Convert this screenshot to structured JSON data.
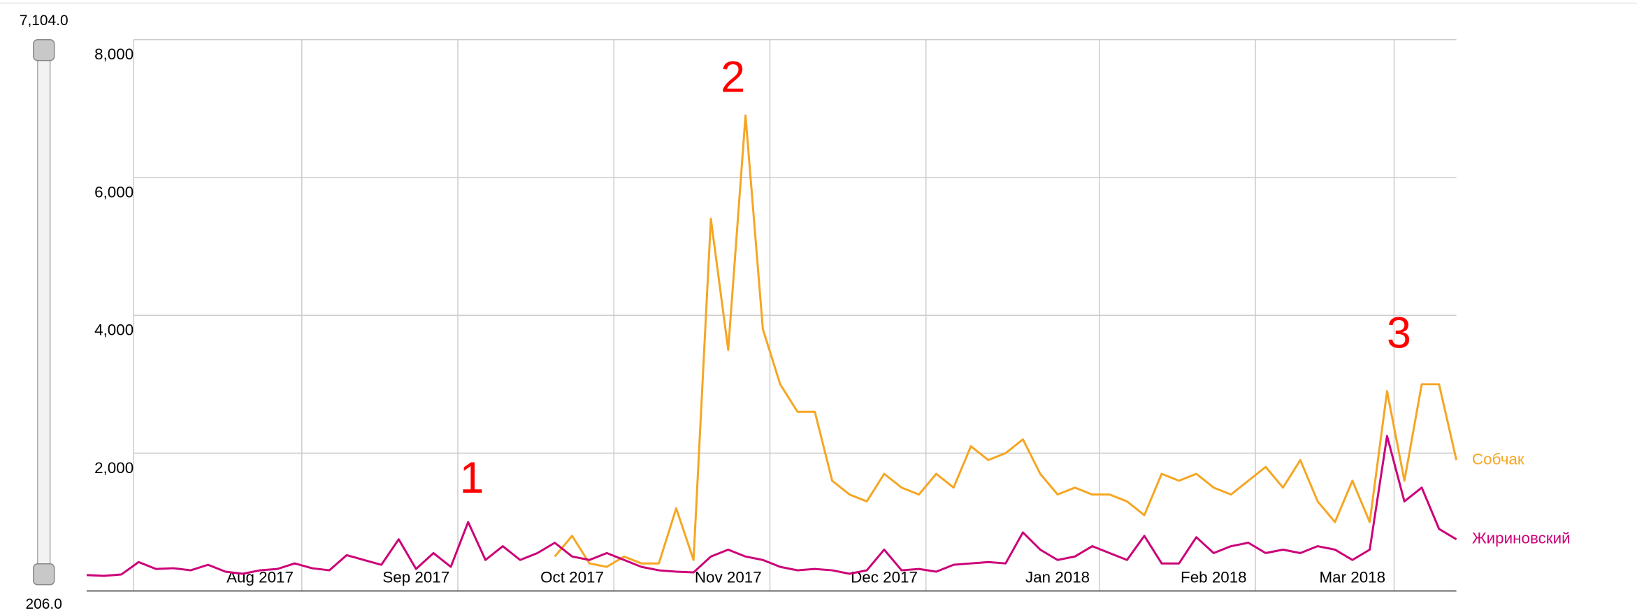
{
  "chart_data": {
    "type": "line",
    "categories": [
      null,
      null,
      null,
      null,
      null,
      null,
      null,
      null,
      null,
      null,
      "Aug 2017",
      null,
      null,
      null,
      null,
      null,
      null,
      null,
      null,
      "Sep 2017",
      null,
      null,
      null,
      null,
      null,
      null,
      null,
      null,
      "Oct 2017",
      null,
      null,
      null,
      null,
      null,
      null,
      null,
      null,
      "Nov 2017",
      null,
      null,
      null,
      null,
      null,
      null,
      null,
      null,
      "Dec 2017",
      null,
      null,
      null,
      null,
      null,
      null,
      null,
      null,
      null,
      "Jan 2018",
      null,
      null,
      null,
      null,
      null,
      null,
      null,
      null,
      "Feb 2018",
      null,
      null,
      null,
      null,
      null,
      null,
      null,
      "Mar 2018",
      null,
      null,
      null,
      null,
      null,
      null
    ],
    "series": [
      {
        "name": "Собчак",
        "color": "#f5a623",
        "values": [
          null,
          null,
          null,
          null,
          null,
          null,
          null,
          null,
          null,
          null,
          null,
          null,
          null,
          null,
          null,
          null,
          null,
          null,
          null,
          null,
          null,
          null,
          null,
          null,
          null,
          null,
          null,
          500,
          800,
          400,
          350,
          500,
          400,
          400,
          1200,
          450,
          5400,
          3500,
          6900,
          3800,
          3000,
          2600,
          2600,
          1600,
          1400,
          1300,
          1700,
          1500,
          1400,
          1700,
          1500,
          2100,
          1900,
          2000,
          2200,
          1700,
          1400,
          1500,
          1400,
          1400,
          1300,
          1100,
          1700,
          1600,
          1700,
          1500,
          1400,
          1600,
          1800,
          1500,
          1900,
          1300,
          1000,
          1600,
          1000,
          2900,
          1600,
          3000,
          3000,
          1900
        ]
      },
      {
        "name": "Жириновский",
        "color": "#cc0077",
        "values": [
          230,
          220,
          240,
          420,
          320,
          330,
          300,
          380,
          280,
          250,
          300,
          320,
          400,
          330,
          300,
          520,
          450,
          380,
          750,
          320,
          550,
          350,
          1000,
          450,
          650,
          450,
          550,
          700,
          500,
          450,
          550,
          450,
          350,
          300,
          280,
          270,
          500,
          600,
          500,
          450,
          350,
          300,
          320,
          300,
          250,
          300,
          600,
          300,
          320,
          280,
          380,
          400,
          420,
          400,
          850,
          600,
          450,
          500,
          650,
          550,
          450,
          800,
          400,
          400,
          780,
          550,
          650,
          700,
          550,
          600,
          550,
          650,
          600,
          450,
          600,
          2250,
          1300,
          1500,
          900,
          750
        ]
      }
    ],
    "ylim": [
      0,
      8000
    ],
    "yticks": [
      {
        "value": 2000,
        "label": "2,000"
      },
      {
        "value": 4000,
        "label": "4,000"
      },
      {
        "value": 6000,
        "label": "6,000"
      },
      {
        "value": 8000,
        "label": "8,000"
      }
    ],
    "grid": true,
    "annotations": [
      "1",
      "2",
      "3"
    ]
  },
  "range_slider": {
    "max": "7,104.0",
    "min": "206.0"
  }
}
